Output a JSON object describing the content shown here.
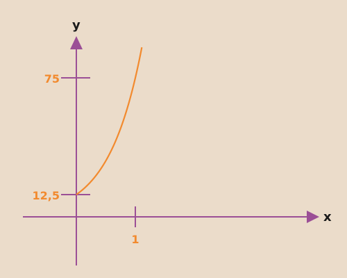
{
  "chart_data": {
    "type": "line",
    "xlabel": "x",
    "ylabel": "y",
    "x_ticks": [
      {
        "value": 1,
        "label": "1"
      }
    ],
    "y_ticks": [
      {
        "value": 12.5,
        "label": "12,5"
      },
      {
        "value": 75,
        "label": "75"
      }
    ],
    "series": [
      {
        "function": "exponential",
        "y_at_0": 12.5,
        "y_at_x": [
          [
            0,
            12.5
          ],
          [
            1,
            75
          ]
        ],
        "x_domain": [
          0,
          1.11
        ],
        "color": "#f28a2e"
      }
    ],
    "axis_color": "#9b4f96",
    "label_color": "#f28a2e",
    "background": "#ebdcca"
  }
}
